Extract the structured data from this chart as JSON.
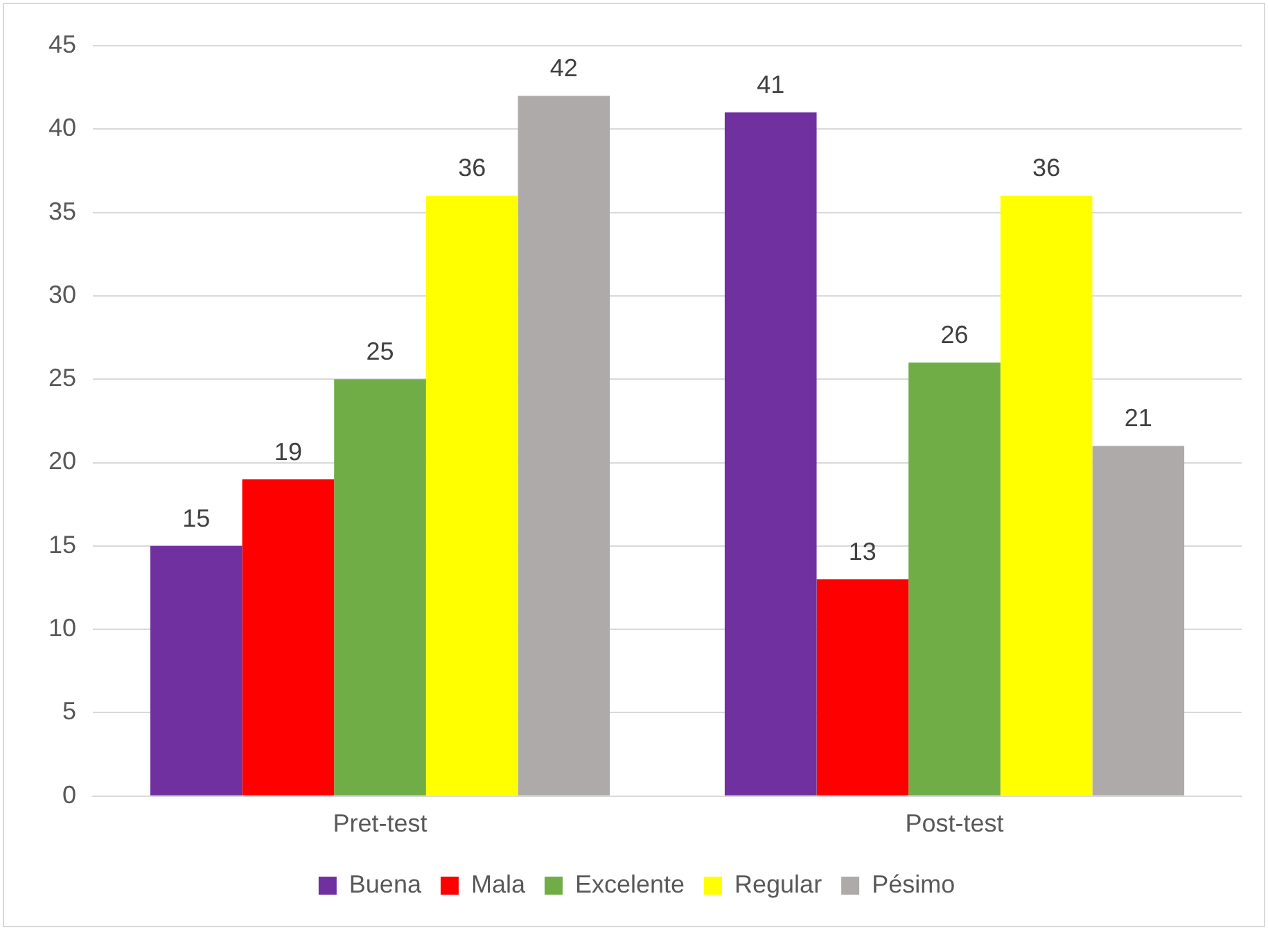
{
  "chart_data": {
    "type": "bar",
    "categories": [
      "Pret-test",
      "Post-test"
    ],
    "series": [
      {
        "name": "Buena",
        "color": "#7030a0",
        "values": [
          15,
          41
        ]
      },
      {
        "name": "Mala",
        "color": "#ff0000",
        "values": [
          19,
          13
        ]
      },
      {
        "name": "Excelente",
        "color": "#70ad47",
        "values": [
          25,
          26
        ]
      },
      {
        "name": "Regular",
        "color": "#ffff00",
        "values": [
          36,
          36
        ]
      },
      {
        "name": "Pésimo",
        "color": "#aeaaaa",
        "values": [
          42,
          21
        ]
      }
    ],
    "ylim": [
      0,
      45
    ],
    "yticks": [
      0,
      5,
      10,
      15,
      20,
      25,
      30,
      35,
      40,
      45
    ],
    "grid": "y",
    "legend": "bottom",
    "data_labels": true
  }
}
